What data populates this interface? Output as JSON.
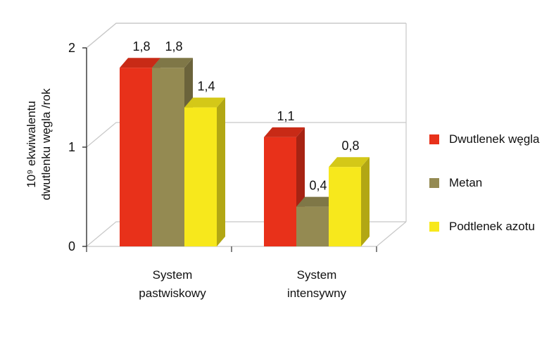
{
  "chart_data": {
    "type": "bar",
    "title": "",
    "ylabel": "10⁹ ekwiwalentu dwutlenku węgla /rok",
    "ylabel_lines": [
      "10⁹ ekwiwalentu",
      "dwutlenku węgla /rok"
    ],
    "xlabel": "",
    "ylim": [
      0,
      2
    ],
    "yticks": [
      "0",
      "1",
      "2"
    ],
    "categories": [
      "System pastwiskowy",
      "System intensywny"
    ],
    "category_lines": [
      [
        "System",
        "pastwiskowy"
      ],
      [
        "System",
        "intensywny"
      ]
    ],
    "series": [
      {
        "name": "Dwutlenek węgla",
        "color": "#e8311a",
        "values": [
          1.8,
          1.1
        ],
        "labels": [
          "1,8",
          "1,1"
        ]
      },
      {
        "name": "Metan",
        "color": "#948a52",
        "values": [
          1.8,
          0.4
        ],
        "labels": [
          "1,8",
          "0,4"
        ]
      },
      {
        "name": "Podtlenek azotu",
        "color": "#f7e81c",
        "values": [
          1.4,
          0.8
        ],
        "labels": [
          "1,4",
          "0,8"
        ]
      }
    ],
    "grid": true,
    "legend": "right",
    "style": "3d"
  }
}
